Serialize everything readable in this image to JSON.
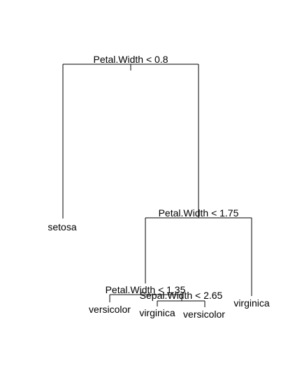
{
  "tree": {
    "nodes": {
      "root": {
        "split": "Petal.Width < 0.8"
      },
      "right1": {
        "split": "Petal.Width < 1.75"
      },
      "left2": {
        "split": "Petal.Width < 1.35"
      },
      "right3": {
        "split": "Sepal.Width < 2.65"
      }
    },
    "leaves": {
      "setosa": "setosa",
      "versicolor_a": "versicolor",
      "virginica_a": "virginica",
      "versicolor_b": "versicolor",
      "virginica_b": "virginica"
    }
  }
}
